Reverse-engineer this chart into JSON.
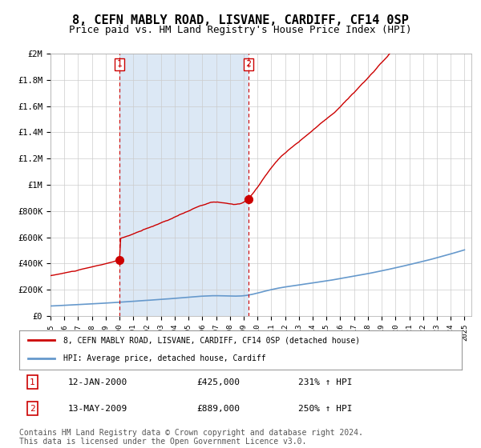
{
  "title": "8, CEFN MABLY ROAD, LISVANE, CARDIFF, CF14 0SP",
  "subtitle": "Price paid vs. HM Land Registry's House Price Index (HPI)",
  "title_fontsize": 11,
  "subtitle_fontsize": 9,
  "background_color": "#ffffff",
  "plot_bg_color": "#ffffff",
  "shaded_region_color": "#dce8f5",
  "grid_color": "#cccccc",
  "red_line_color": "#cc0000",
  "blue_line_color": "#6699cc",
  "sale1_month": 60,
  "sale1_price": 425000,
  "sale2_month": 172,
  "sale2_price": 889000,
  "ylim": [
    0,
    2000000
  ],
  "yticks": [
    0,
    200000,
    400000,
    600000,
    800000,
    1000000,
    1200000,
    1400000,
    1600000,
    1800000,
    2000000
  ],
  "ytick_labels": [
    "£0",
    "£200K",
    "£400K",
    "£600K",
    "£800K",
    "£1M",
    "£1.2M",
    "£1.4M",
    "£1.6M",
    "£1.8M",
    "£2M"
  ],
  "legend_line1": "8, CEFN MABLY ROAD, LISVANE, CARDIFF, CF14 0SP (detached house)",
  "legend_line2": "HPI: Average price, detached house, Cardiff",
  "annot1_label": "1",
  "annot1_date": "12-JAN-2000",
  "annot1_price": "£425,000",
  "annot1_hpi": "231% ↑ HPI",
  "annot2_label": "2",
  "annot2_date": "13-MAY-2009",
  "annot2_price": "£889,000",
  "annot2_hpi": "250% ↑ HPI",
  "footer": "Contains HM Land Registry data © Crown copyright and database right 2024.\nThis data is licensed under the Open Government Licence v3.0.",
  "footer_fontsize": 7,
  "x_start_year": 1995,
  "x_end_year": 2025
}
